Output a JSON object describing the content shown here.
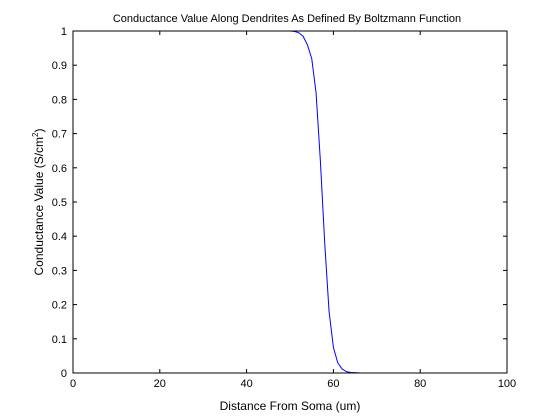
{
  "chart_data": {
    "type": "line",
    "title": "Conductance Value Along Dendrites As Defined By Boltzmann Function",
    "xlabel": "Distance From Soma (um)",
    "ylabel": "Conductance Value (S/cm^2)",
    "ylabel_parts": {
      "main": "Conductance Value (S/cm",
      "sup": "2",
      "close": ")"
    },
    "xlim": [
      0,
      100
    ],
    "ylim": [
      0,
      1
    ],
    "xticks": [
      "0",
      "20",
      "40",
      "60",
      "80",
      "100"
    ],
    "yticks": [
      "0",
      "0.1",
      "0.2",
      "0.3",
      "0.4",
      "0.5",
      "0.6",
      "0.7",
      "0.8",
      "0.9",
      "1"
    ],
    "grid": false,
    "legend": "none",
    "series": [
      {
        "color": "#0000ff",
        "x": [
          50,
          51,
          52,
          53,
          54,
          55,
          56,
          57,
          58,
          59,
          60,
          61,
          62,
          63,
          64,
          66,
          70,
          80,
          94
        ],
        "y": [
          1.0,
          0.999,
          0.995,
          0.985,
          0.96,
          0.92,
          0.82,
          0.62,
          0.38,
          0.18,
          0.075,
          0.03,
          0.012,
          0.004,
          0.0015,
          0.0003,
          0.0,
          0.0,
          0.0
        ]
      }
    ]
  }
}
